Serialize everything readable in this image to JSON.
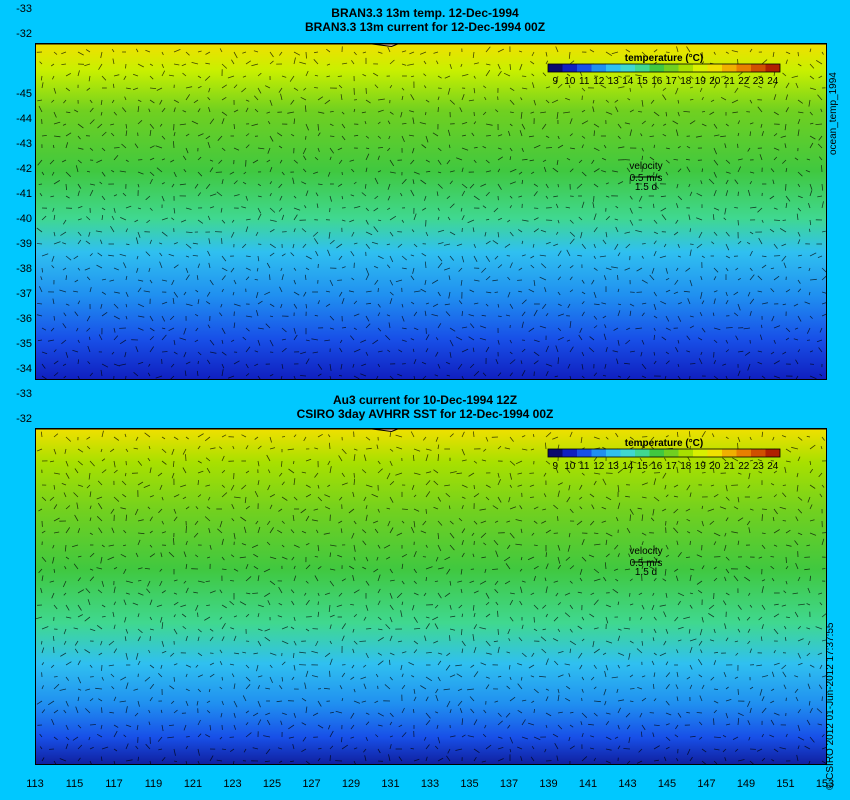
{
  "panel1": {
    "title_line1": "BRAN3.3 13m temp. 12-Dec-1994",
    "title_line2": "BRAN3.3 13m current for 12-Dec-1994 00Z",
    "side_label": "ocean_temp_1994"
  },
  "panel2": {
    "title_line1": "Au3 current for 10-Dec-1994 12Z",
    "title_line2": "CSIRO 3day AVHRR SST for 12-Dec-1994 00Z",
    "side_label": "© CSIRO 2012  01-Jun-2012 17:37:55"
  },
  "colorbar": {
    "title": "temperature (°C)",
    "labels": [
      "9",
      "10",
      "11",
      "12",
      "13",
      "14",
      "15",
      "16",
      "17",
      "18",
      "19",
      "20",
      "21",
      "22",
      "23",
      "24"
    ],
    "colors": [
      "#0a0a6e",
      "#1020c0",
      "#1850e8",
      "#2090f0",
      "#30c0f0",
      "#40d8d0",
      "#40d890",
      "#40c840",
      "#70d020",
      "#a8e000",
      "#d8f000",
      "#f0e000",
      "#f0b000",
      "#e88000",
      "#d05000",
      "#b02000"
    ]
  },
  "velocity": {
    "label": "velocity",
    "value": "0.5 m/s",
    "scale": "1.5 d"
  },
  "y_ticks": [
    "-32",
    "-33",
    "-34",
    "-35",
    "-36",
    "-37",
    "-38",
    "-39",
    "-40",
    "-41",
    "-42",
    "-43",
    "-44",
    "-45"
  ],
  "x_ticks": [
    "113",
    "115",
    "117",
    "119",
    "121",
    "123",
    "125",
    "127",
    "129",
    "131",
    "133",
    "135",
    "137",
    "139",
    "141",
    "143",
    "145",
    "147",
    "149",
    "151",
    "153"
  ],
  "colors": {
    "background": "#00c8ff",
    "land": "#f8c898"
  }
}
